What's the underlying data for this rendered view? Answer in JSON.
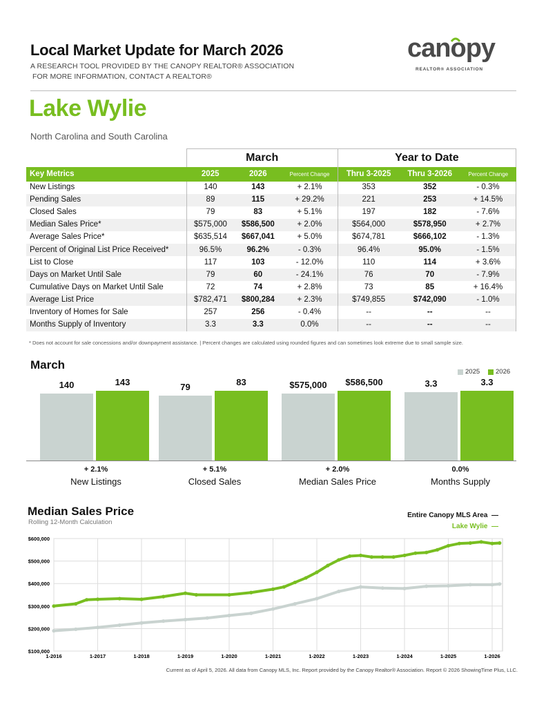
{
  "header": {
    "title": "Local Market Update for March 2026",
    "line1": "A RESEARCH TOOL PROVIDED BY THE CANOPY REALTOR® ASSOCIATION",
    "line2": "FOR MORE INFORMATION, CONTACT A REALTOR®",
    "logo_text": "canopy",
    "logo_sub": "REALTOR® ASSOCIATION"
  },
  "area": {
    "name": "Lake Wylie",
    "states": "North Carolina and South Carolina"
  },
  "table": {
    "group_march": "March",
    "group_ytd": "Year to Date",
    "columns": [
      "Key Metrics",
      "2025",
      "2026",
      "Percent Change",
      "Thru 3-2025",
      "Thru 3-2026",
      "Percent Change"
    ],
    "rows": [
      [
        "New Listings",
        "140",
        "143",
        "+ 2.1%",
        "353",
        "352",
        "- 0.3%"
      ],
      [
        "Pending Sales",
        "89",
        "115",
        "+ 29.2%",
        "221",
        "253",
        "+ 14.5%"
      ],
      [
        "Closed Sales",
        "79",
        "83",
        "+ 5.1%",
        "197",
        "182",
        "- 7.6%"
      ],
      [
        "Median Sales Price*",
        "$575,000",
        "$586,500",
        "+ 2.0%",
        "$564,000",
        "$578,950",
        "+ 2.7%"
      ],
      [
        "Average Sales Price*",
        "$635,514",
        "$667,041",
        "+ 5.0%",
        "$674,781",
        "$666,102",
        "- 1.3%"
      ],
      [
        "Percent of Original List Price Received*",
        "96.5%",
        "96.2%",
        "- 0.3%",
        "96.4%",
        "95.0%",
        "- 1.5%"
      ],
      [
        "List to Close",
        "117",
        "103",
        "- 12.0%",
        "110",
        "114",
        "+ 3.6%"
      ],
      [
        "Days on Market Until Sale",
        "79",
        "60",
        "- 24.1%",
        "76",
        "70",
        "- 7.9%"
      ],
      [
        "Cumulative Days on Market Until Sale",
        "72",
        "74",
        "+ 2.8%",
        "73",
        "85",
        "+ 16.4%"
      ],
      [
        "Average List Price",
        "$782,471",
        "$800,284",
        "+ 2.3%",
        "$749,855",
        "$742,090",
        "- 1.0%"
      ],
      [
        "Inventory of Homes for Sale",
        "257",
        "256",
        "- 0.4%",
        "--",
        "--",
        "--"
      ],
      [
        "Months Supply of Inventory",
        "3.3",
        "3.3",
        "0.0%",
        "--",
        "--",
        "--"
      ]
    ],
    "footnote": "* Does not account for sale concessions and/or downpayment assistance.  |  Percent changes are calculated using rounded figures and can sometimes look extreme due to small sample size."
  },
  "colors": {
    "accent": "#78be20",
    "grey": "#c9d3d0"
  },
  "chart_data": [
    {
      "type": "bar",
      "title": "March",
      "legend": [
        "2025",
        "2026"
      ],
      "legend_position": "top-right",
      "categories": [
        "New Listings",
        "Closed Sales",
        "Median Sales Price",
        "Months Supply"
      ],
      "series": [
        {
          "name": "2025",
          "values": [
            140,
            79,
            575000,
            3.3
          ],
          "labels": [
            "140",
            "79",
            "$575,000",
            "3.3"
          ]
        },
        {
          "name": "2026",
          "values": [
            143,
            83,
            586500,
            3.3
          ],
          "labels": [
            "143",
            "83",
            "$586,500",
            "3.3"
          ]
        }
      ],
      "changes": [
        "+ 2.1%",
        "+ 5.1%",
        "+ 2.0%",
        "0.0%"
      ]
    },
    {
      "type": "line",
      "title": "Median Sales Price",
      "subtitle": "Rolling 12-Month Calculation",
      "ylim": [
        100000,
        600000
      ],
      "yticks": [
        "$100,000",
        "$200,000",
        "$300,000",
        "$400,000",
        "$500,000",
        "$600,000"
      ],
      "xticks": [
        "1-2016",
        "1-2017",
        "1-2018",
        "1-2019",
        "1-2020",
        "1-2021",
        "1-2022",
        "1-2023",
        "1-2024",
        "1-2025",
        "1-2026"
      ],
      "grid": true,
      "legend_position": "top-right",
      "series": [
        {
          "name": "Entire Canopy MLS Area",
          "color": "#c9d3d0",
          "x": [
            2016.0,
            2016.5,
            2017.0,
            2017.5,
            2018.0,
            2018.5,
            2019.0,
            2019.5,
            2020.0,
            2020.5,
            2021.0,
            2021.5,
            2022.0,
            2022.5,
            2023.0,
            2023.5,
            2024.0,
            2024.5,
            2025.0,
            2025.5,
            2026.0,
            2026.17
          ],
          "y": [
            190000,
            197000,
            205000,
            215000,
            225000,
            233000,
            240000,
            247000,
            258000,
            268000,
            287000,
            310000,
            333000,
            365000,
            385000,
            380000,
            378000,
            388000,
            390000,
            395000,
            395000,
            398000
          ]
        },
        {
          "name": "Lake Wylie",
          "color": "#78be20",
          "x": [
            2016.0,
            2016.5,
            2016.75,
            2017.0,
            2017.5,
            2018.0,
            2018.5,
            2019.0,
            2019.25,
            2020.0,
            2020.5,
            2021.0,
            2021.25,
            2021.5,
            2021.75,
            2022.0,
            2022.25,
            2022.5,
            2022.75,
            2023.0,
            2023.25,
            2023.5,
            2023.75,
            2024.0,
            2024.25,
            2024.5,
            2024.75,
            2025.0,
            2025.25,
            2025.5,
            2025.75,
            2026.0,
            2026.17
          ],
          "y": [
            300000,
            310000,
            328000,
            330000,
            333000,
            330000,
            342000,
            357000,
            350000,
            350000,
            360000,
            375000,
            385000,
            405000,
            425000,
            450000,
            480000,
            505000,
            522000,
            525000,
            518000,
            518000,
            518000,
            525000,
            535000,
            538000,
            550000,
            568000,
            578000,
            580000,
            585000,
            578000,
            580000
          ]
        }
      ]
    }
  ],
  "credit": "Current as of April 5, 2026. All data from Canopy MLS, Inc. Report provided by the Canopy Realtor® Association. Report © 2026 ShowingTime Plus, LLC."
}
